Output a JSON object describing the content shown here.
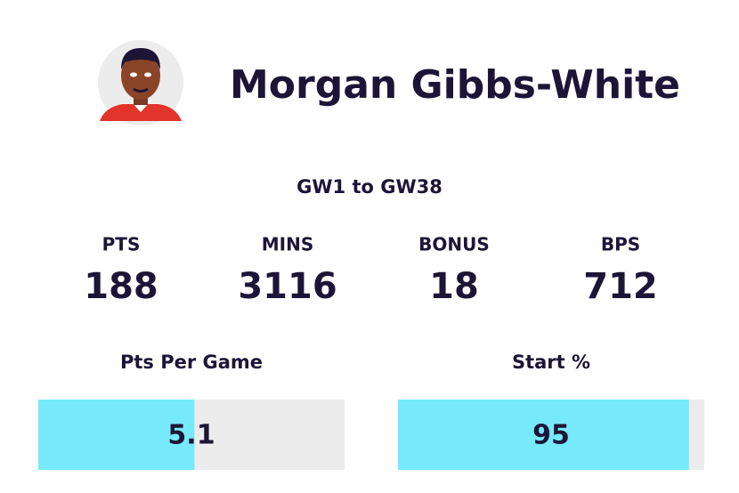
{
  "player": {
    "name": "Morgan Gibbs-White"
  },
  "period": "GW1 to GW38",
  "stats": [
    {
      "label": "PTS",
      "value": 188
    },
    {
      "label": "MINS",
      "value": 3116
    },
    {
      "label": "BONUS",
      "value": 18
    },
    {
      "label": "BPS",
      "value": 712
    }
  ],
  "bars": [
    {
      "label": "Pts Per Game",
      "value": 5.1,
      "xlim": [
        0,
        10
      ]
    },
    {
      "label": "Start %",
      "value": 95,
      "xlim": [
        0,
        100
      ]
    }
  ]
}
